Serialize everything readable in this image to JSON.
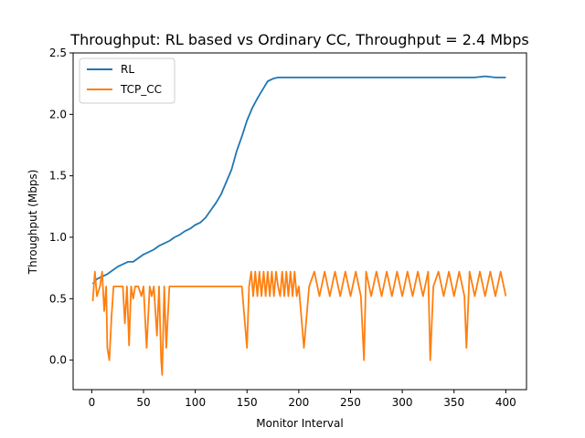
{
  "chart_data": {
    "type": "line",
    "title": "Throughput: RL based vs Ordinary CC, Throughput = 2.4 Mbps",
    "xlabel": "Monitor Interval",
    "ylabel": "Throughput (Mbps)",
    "xlim": [
      -18,
      420
    ],
    "ylim": [
      -0.24,
      2.5
    ],
    "xticks": [
      0,
      50,
      100,
      150,
      200,
      250,
      300,
      350,
      400
    ],
    "yticks": [
      0.0,
      0.5,
      1.0,
      1.5,
      2.0,
      2.5
    ],
    "xtick_labels": [
      "0",
      "50",
      "100",
      "150",
      "200",
      "250",
      "300",
      "350",
      "400"
    ],
    "ytick_labels": [
      "0.0",
      "0.5",
      "1.0",
      "1.5",
      "2.0",
      "2.5"
    ],
    "grid": false,
    "legend_position": "top-left",
    "series": [
      {
        "name": "RL",
        "color": "#1f77b4",
        "x": [
          1,
          5,
          10,
          15,
          20,
          25,
          30,
          35,
          40,
          45,
          50,
          55,
          60,
          65,
          70,
          75,
          80,
          85,
          90,
          95,
          100,
          105,
          110,
          115,
          120,
          125,
          130,
          135,
          140,
          145,
          150,
          155,
          160,
          165,
          170,
          175,
          180,
          190,
          200,
          210,
          220,
          230,
          240,
          250,
          260,
          270,
          280,
          290,
          300,
          310,
          320,
          330,
          340,
          350,
          360,
          370,
          380,
          390,
          400
        ],
        "y": [
          0.62,
          0.66,
          0.68,
          0.7,
          0.73,
          0.76,
          0.78,
          0.8,
          0.8,
          0.83,
          0.86,
          0.88,
          0.9,
          0.93,
          0.95,
          0.97,
          1.0,
          1.02,
          1.05,
          1.07,
          1.1,
          1.12,
          1.16,
          1.22,
          1.28,
          1.35,
          1.45,
          1.55,
          1.7,
          1.82,
          1.95,
          2.05,
          2.13,
          2.2,
          2.27,
          2.29,
          2.3,
          2.3,
          2.3,
          2.3,
          2.3,
          2.3,
          2.3,
          2.3,
          2.3,
          2.3,
          2.3,
          2.3,
          2.3,
          2.3,
          2.3,
          2.3,
          2.3,
          2.3,
          2.3,
          2.3,
          2.31,
          2.3,
          2.3
        ]
      },
      {
        "name": "TCP_CC",
        "color": "#ff7f0e",
        "x": [
          1,
          3,
          5,
          8,
          10,
          12,
          14,
          15,
          17,
          19,
          21,
          24,
          27,
          30,
          32,
          34,
          36,
          38,
          40,
          42,
          45,
          48,
          50,
          53,
          56,
          58,
          60,
          63,
          65,
          67,
          68,
          70,
          72,
          75,
          78,
          80,
          85,
          90,
          100,
          110,
          120,
          130,
          135,
          140,
          145,
          150,
          152,
          154,
          156,
          158,
          160,
          162,
          164,
          166,
          168,
          170,
          172,
          174,
          176,
          178,
          180,
          182,
          184,
          186,
          188,
          190,
          192,
          194,
          196,
          198,
          200,
          205,
          210,
          215,
          220,
          225,
          230,
          235,
          240,
          245,
          250,
          255,
          260,
          263,
          265,
          270,
          275,
          280,
          285,
          290,
          295,
          300,
          305,
          310,
          315,
          320,
          325,
          327,
          330,
          335,
          340,
          345,
          350,
          355,
          360,
          362,
          365,
          370,
          375,
          380,
          385,
          390,
          395,
          400
        ],
        "y": [
          0.48,
          0.72,
          0.52,
          0.6,
          0.72,
          0.4,
          0.6,
          0.1,
          0.0,
          0.34,
          0.6,
          0.6,
          0.6,
          0.6,
          0.3,
          0.6,
          0.12,
          0.6,
          0.5,
          0.6,
          0.6,
          0.52,
          0.6,
          0.1,
          0.6,
          0.52,
          0.6,
          0.2,
          0.6,
          0.0,
          -0.12,
          0.6,
          0.1,
          0.6,
          0.6,
          0.6,
          0.6,
          0.6,
          0.6,
          0.6,
          0.6,
          0.6,
          0.6,
          0.6,
          0.6,
          0.1,
          0.6,
          0.72,
          0.52,
          0.72,
          0.52,
          0.72,
          0.52,
          0.72,
          0.52,
          0.72,
          0.52,
          0.72,
          0.52,
          0.72,
          0.6,
          0.52,
          0.72,
          0.52,
          0.72,
          0.52,
          0.72,
          0.52,
          0.72,
          0.52,
          0.6,
          0.1,
          0.6,
          0.72,
          0.52,
          0.72,
          0.52,
          0.72,
          0.52,
          0.72,
          0.52,
          0.72,
          0.52,
          0.0,
          0.72,
          0.52,
          0.72,
          0.52,
          0.72,
          0.52,
          0.72,
          0.52,
          0.72,
          0.52,
          0.72,
          0.52,
          0.72,
          0.0,
          0.6,
          0.72,
          0.52,
          0.72,
          0.52,
          0.72,
          0.52,
          0.1,
          0.72,
          0.52,
          0.72,
          0.52,
          0.72,
          0.52,
          0.72,
          0.52
        ]
      }
    ]
  }
}
